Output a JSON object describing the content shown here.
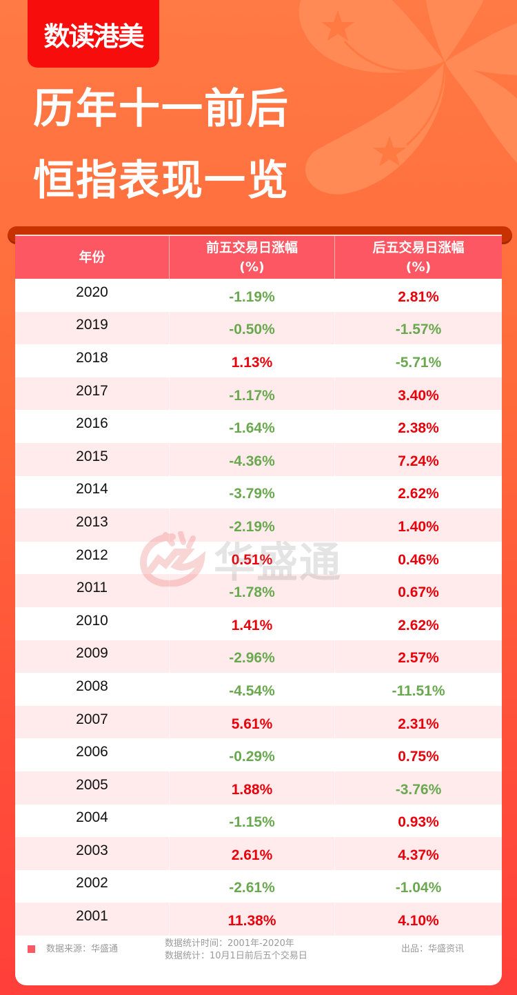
{
  "brand_tag": "数读港美",
  "headline": {
    "line1": "历年十一前后",
    "line2": "恒指表现一览"
  },
  "colors": {
    "positive": "#e8000b",
    "negative": "#6aa84f",
    "header_bg": "#fc5762",
    "brand_red": "#f80d0d"
  },
  "table": {
    "headers": {
      "year": "年份",
      "before_line1": "前五交易日涨幅",
      "before_line2": "(%)",
      "after_line1": "后五交易日涨幅",
      "after_line2": "(%)"
    },
    "rows": [
      {
        "year": "2020",
        "before": "-1.19%",
        "after": "2.81%"
      },
      {
        "year": "2019",
        "before": "-0.50%",
        "after": "-1.57%"
      },
      {
        "year": "2018",
        "before": "1.13%",
        "after": "-5.71%"
      },
      {
        "year": "2017",
        "before": "-1.17%",
        "after": "3.40%"
      },
      {
        "year": "2016",
        "before": "-1.64%",
        "after": "2.38%"
      },
      {
        "year": "2015",
        "before": "-4.36%",
        "after": "7.24%"
      },
      {
        "year": "2014",
        "before": "-3.79%",
        "after": "2.62%"
      },
      {
        "year": "2013",
        "before": "-2.19%",
        "after": "1.40%"
      },
      {
        "year": "2012",
        "before": "0.51%",
        "after": "0.46%"
      },
      {
        "year": "2011",
        "before": "-1.78%",
        "after": "0.67%"
      },
      {
        "year": "2010",
        "before": "1.41%",
        "after": "2.62%"
      },
      {
        "year": "2009",
        "before": "-2.96%",
        "after": "2.57%"
      },
      {
        "year": "2008",
        "before": "-4.54%",
        "after": "-11.51%"
      },
      {
        "year": "2007",
        "before": "5.61%",
        "after": "2.31%"
      },
      {
        "year": "2006",
        "before": "-0.29%",
        "after": "0.75%"
      },
      {
        "year": "2005",
        "before": "1.88%",
        "after": "-3.76%"
      },
      {
        "year": "2004",
        "before": "-1.15%",
        "after": "0.93%"
      },
      {
        "year": "2003",
        "before": "2.61%",
        "after": "4.37%"
      },
      {
        "year": "2002",
        "before": "-2.61%",
        "after": "-1.04%"
      },
      {
        "year": "2001",
        "before": "11.38%",
        "after": "4.10%"
      }
    ]
  },
  "watermark": "华盛通",
  "footer": {
    "source": "数据来源：华盛通",
    "range_line1": "数据统计时间：2001年-2020年",
    "range_line2": "数据统计：10月1日前后五个交易日",
    "producer": "出品：华盛资讯"
  }
}
